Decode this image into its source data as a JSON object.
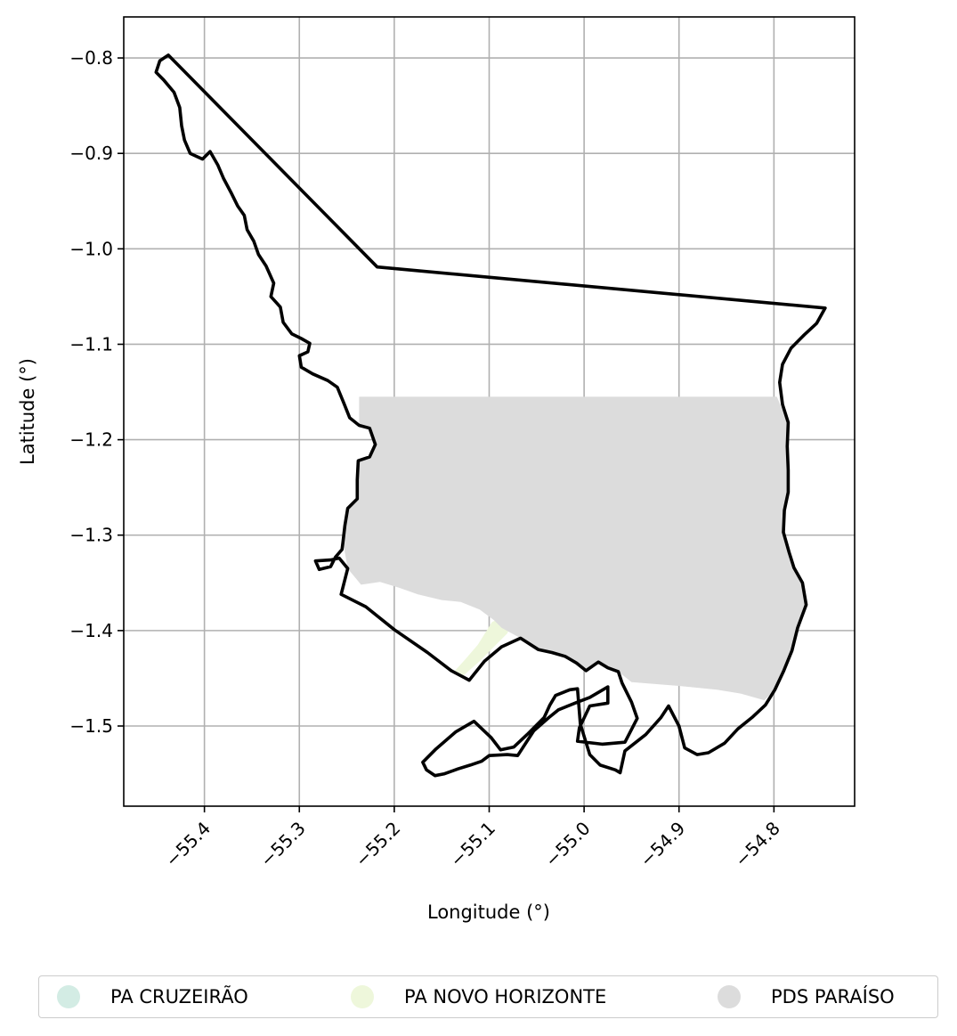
{
  "chart_data": {
    "type": "map",
    "xlabel": "Longitude (°)",
    "ylabel": "Latitude (°)",
    "xlim": [
      -55.485,
      -54.715
    ],
    "ylim": [
      -1.584,
      -0.757
    ],
    "x_ticks": [
      {
        "value": -55.4,
        "label": "−55.4"
      },
      {
        "value": -55.3,
        "label": "−55.3"
      },
      {
        "value": -55.2,
        "label": "−55.2"
      },
      {
        "value": -55.1,
        "label": "−55.1"
      },
      {
        "value": -55.0,
        "label": "−55.0"
      },
      {
        "value": -54.9,
        "label": "−54.9"
      },
      {
        "value": -54.8,
        "label": "−54.8"
      }
    ],
    "y_ticks": [
      {
        "value": -0.8,
        "label": "−0.8"
      },
      {
        "value": -0.9,
        "label": "−0.9"
      },
      {
        "value": -1.0,
        "label": "−1.0"
      },
      {
        "value": -1.1,
        "label": "−1.1"
      },
      {
        "value": -1.2,
        "label": "−1.2"
      },
      {
        "value": -1.3,
        "label": "−1.3"
      },
      {
        "value": -1.4,
        "label": "−1.4"
      },
      {
        "value": -1.5,
        "label": "−1.5"
      }
    ],
    "grid": true,
    "legend_position": "bottom-center",
    "boundary": {
      "stroke": "#000000",
      "coordinates": [
        [
          -55.438,
          -0.797
        ],
        [
          -55.447,
          -0.803
        ],
        [
          -55.451,
          -0.815
        ],
        [
          -55.443,
          -0.823
        ],
        [
          -55.432,
          -0.836
        ],
        [
          -55.426,
          -0.852
        ],
        [
          -55.424,
          -0.871
        ],
        [
          -55.421,
          -0.886
        ],
        [
          -55.415,
          -0.9
        ],
        [
          -55.402,
          -0.906
        ],
        [
          -55.394,
          -0.898
        ],
        [
          -55.386,
          -0.912
        ],
        [
          -55.38,
          -0.926
        ],
        [
          -55.372,
          -0.941
        ],
        [
          -55.365,
          -0.955
        ],
        [
          -55.358,
          -0.965
        ],
        [
          -55.355,
          -0.98
        ],
        [
          -55.348,
          -0.992
        ],
        [
          -55.343,
          -1.006
        ],
        [
          -55.335,
          -1.018
        ],
        [
          -55.327,
          -1.036
        ],
        [
          -55.33,
          -1.05
        ],
        [
          -55.32,
          -1.061
        ],
        [
          -55.317,
          -1.077
        ],
        [
          -55.308,
          -1.089
        ],
        [
          -55.298,
          -1.094
        ],
        [
          -55.289,
          -1.099
        ],
        [
          -55.291,
          -1.108
        ],
        [
          -55.3,
          -1.112
        ],
        [
          -55.298,
          -1.124
        ],
        [
          -55.286,
          -1.131
        ],
        [
          -55.27,
          -1.138
        ],
        [
          -55.26,
          -1.145
        ],
        [
          -55.253,
          -1.162
        ],
        [
          -55.247,
          -1.177
        ],
        [
          -55.237,
          -1.185
        ],
        [
          -55.226,
          -1.188
        ],
        [
          -55.22,
          -1.205
        ],
        [
          -55.226,
          -1.218
        ],
        [
          -55.238,
          -1.222
        ],
        [
          -55.239,
          -1.242
        ],
        [
          -55.239,
          -1.262
        ],
        [
          -55.249,
          -1.272
        ],
        [
          -55.252,
          -1.29
        ],
        [
          -55.254,
          -1.307
        ],
        [
          -55.255,
          -1.315
        ],
        [
          -55.262,
          -1.323
        ],
        [
          -55.267,
          -1.333
        ],
        [
          -55.279,
          -1.336
        ],
        [
          -55.283,
          -1.327
        ],
        [
          -55.267,
          -1.326
        ],
        [
          -55.258,
          -1.324
        ],
        [
          -55.249,
          -1.335
        ],
        [
          -55.256,
          -1.362
        ],
        [
          -55.23,
          -1.375
        ],
        [
          -55.2,
          -1.399
        ],
        [
          -55.165,
          -1.423
        ],
        [
          -55.14,
          -1.442
        ],
        [
          -55.121,
          -1.452
        ],
        [
          -55.105,
          -1.432
        ],
        [
          -55.087,
          -1.417
        ],
        [
          -55.067,
          -1.408
        ],
        [
          -55.048,
          -1.42
        ],
        [
          -55.034,
          -1.423
        ],
        [
          -55.02,
          -1.427
        ],
        [
          -55.008,
          -1.434
        ],
        [
          -54.998,
          -1.442
        ],
        [
          -54.985,
          -1.433
        ],
        [
          -54.975,
          -1.439
        ],
        [
          -54.964,
          -1.443
        ],
        [
          -54.96,
          -1.455
        ],
        [
          -54.95,
          -1.475
        ],
        [
          -54.944,
          -1.492
        ],
        [
          -54.957,
          -1.517
        ],
        [
          -54.981,
          -1.519
        ],
        [
          -55.007,
          -1.516
        ],
        [
          -55.005,
          -1.502
        ],
        [
          -54.994,
          -1.479
        ],
        [
          -54.975,
          -1.476
        ],
        [
          -54.975,
          -1.459
        ],
        [
          -54.994,
          -1.47
        ],
        [
          -55.007,
          -1.475
        ],
        [
          -55.027,
          -1.483
        ],
        [
          -55.037,
          -1.491
        ],
        [
          -55.053,
          -1.505
        ],
        [
          -55.07,
          -1.531
        ],
        [
          -55.081,
          -1.53
        ],
        [
          -55.1,
          -1.531
        ],
        [
          -55.108,
          -1.537
        ],
        [
          -55.12,
          -1.541
        ],
        [
          -55.133,
          -1.545
        ],
        [
          -55.147,
          -1.55
        ],
        [
          -55.157,
          -1.552
        ],
        [
          -55.166,
          -1.546
        ],
        [
          -55.17,
          -1.538
        ],
        [
          -55.156,
          -1.524
        ],
        [
          -55.135,
          -1.506
        ],
        [
          -55.116,
          -1.495
        ],
        [
          -55.098,
          -1.512
        ],
        [
          -55.088,
          -1.525
        ],
        [
          -55.074,
          -1.522
        ],
        [
          -55.06,
          -1.509
        ],
        [
          -55.042,
          -1.491
        ],
        [
          -55.036,
          -1.478
        ],
        [
          -55.03,
          -1.468
        ],
        [
          -55.015,
          -1.462
        ],
        [
          -55.007,
          -1.461
        ],
        [
          -55.004,
          -1.498
        ],
        [
          -54.994,
          -1.53
        ],
        [
          -54.983,
          -1.541
        ],
        [
          -54.967,
          -1.546
        ],
        [
          -54.962,
          -1.549
        ],
        [
          -54.957,
          -1.526
        ],
        [
          -54.935,
          -1.509
        ],
        [
          -54.919,
          -1.491
        ],
        [
          -54.911,
          -1.479
        ],
        [
          -54.9,
          -1.5
        ],
        [
          -54.894,
          -1.523
        ],
        [
          -54.881,
          -1.53
        ],
        [
          -54.869,
          -1.528
        ],
        [
          -54.852,
          -1.518
        ],
        [
          -54.838,
          -1.503
        ],
        [
          -54.823,
          -1.491
        ],
        [
          -54.809,
          -1.478
        ],
        [
          -54.799,
          -1.462
        ],
        [
          -54.79,
          -1.443
        ],
        [
          -54.781,
          -1.421
        ],
        [
          -54.775,
          -1.397
        ],
        [
          -54.766,
          -1.373
        ],
        [
          -54.77,
          -1.35
        ],
        [
          -54.779,
          -1.334
        ],
        [
          -54.784,
          -1.318
        ],
        [
          -54.79,
          -1.297
        ],
        [
          -54.789,
          -1.274
        ],
        [
          -54.785,
          -1.255
        ],
        [
          -54.785,
          -1.232
        ],
        [
          -54.786,
          -1.207
        ],
        [
          -54.785,
          -1.182
        ],
        [
          -54.791,
          -1.163
        ],
        [
          -54.794,
          -1.14
        ],
        [
          -54.791,
          -1.121
        ],
        [
          -54.782,
          -1.104
        ],
        [
          -54.768,
          -1.09
        ],
        [
          -54.755,
          -1.078
        ],
        [
          -54.746,
          -1.062
        ],
        [
          -55.218,
          -1.019
        ],
        [
          -55.438,
          -0.797
        ]
      ]
    },
    "areas": [
      {
        "name": "PA CRUZEIRÃO",
        "color": "#d3ece4",
        "coordinates": []
      },
      {
        "name": "PA NOVO HORIZONTE",
        "color": "#eef7db",
        "coordinates": [
          [
            -55.136,
            -1.442
          ],
          [
            -55.125,
            -1.43
          ],
          [
            -55.112,
            -1.415
          ],
          [
            -55.097,
            -1.391
          ],
          [
            -55.086,
            -1.386
          ],
          [
            -55.076,
            -1.392
          ],
          [
            -55.081,
            -1.403
          ],
          [
            -55.095,
            -1.417
          ],
          [
            -55.11,
            -1.432
          ],
          [
            -55.127,
            -1.447
          ]
        ]
      },
      {
        "name": "PDS PARAÍSO",
        "color": "#dcdcdc",
        "coordinates": [
          [
            -55.237,
            -1.155
          ],
          [
            -54.797,
            -1.155
          ],
          [
            -54.785,
            -1.182
          ],
          [
            -54.786,
            -1.207
          ],
          [
            -54.785,
            -1.232
          ],
          [
            -54.785,
            -1.255
          ],
          [
            -54.789,
            -1.274
          ],
          [
            -54.79,
            -1.297
          ],
          [
            -54.784,
            -1.318
          ],
          [
            -54.779,
            -1.334
          ],
          [
            -54.77,
            -1.35
          ],
          [
            -54.766,
            -1.373
          ],
          [
            -54.775,
            -1.397
          ],
          [
            -54.781,
            -1.421
          ],
          [
            -54.79,
            -1.443
          ],
          [
            -54.799,
            -1.462
          ],
          [
            -54.81,
            -1.473
          ],
          [
            -54.835,
            -1.466
          ],
          [
            -54.86,
            -1.462
          ],
          [
            -54.9,
            -1.458
          ],
          [
            -54.95,
            -1.454
          ],
          [
            -54.964,
            -1.443
          ],
          [
            -54.985,
            -1.433
          ],
          [
            -54.998,
            -1.442
          ],
          [
            -55.008,
            -1.434
          ],
          [
            -55.034,
            -1.423
          ],
          [
            -55.048,
            -1.42
          ],
          [
            -55.067,
            -1.408
          ],
          [
            -55.087,
            -1.397
          ],
          [
            -55.095,
            -1.389
          ],
          [
            -55.11,
            -1.378
          ],
          [
            -55.13,
            -1.37
          ],
          [
            -55.15,
            -1.368
          ],
          [
            -55.175,
            -1.362
          ],
          [
            -55.195,
            -1.355
          ],
          [
            -55.215,
            -1.349
          ],
          [
            -55.235,
            -1.352
          ],
          [
            -55.249,
            -1.335
          ],
          [
            -55.254,
            -1.307
          ],
          [
            -55.252,
            -1.29
          ],
          [
            -55.249,
            -1.272
          ],
          [
            -55.239,
            -1.262
          ],
          [
            -55.239,
            -1.242
          ],
          [
            -55.238,
            -1.222
          ],
          [
            -55.226,
            -1.218
          ],
          [
            -55.22,
            -1.205
          ],
          [
            -55.226,
            -1.188
          ],
          [
            -55.237,
            -1.185
          ]
        ]
      }
    ]
  },
  "legend": {
    "items": [
      {
        "label": "PA CRUZEIRÃO",
        "color": "#d3ece4"
      },
      {
        "label": "PA NOVO HORIZONTE",
        "color": "#eef7db"
      },
      {
        "label": "PDS PARAÍSO",
        "color": "#dcdcdc"
      }
    ]
  }
}
